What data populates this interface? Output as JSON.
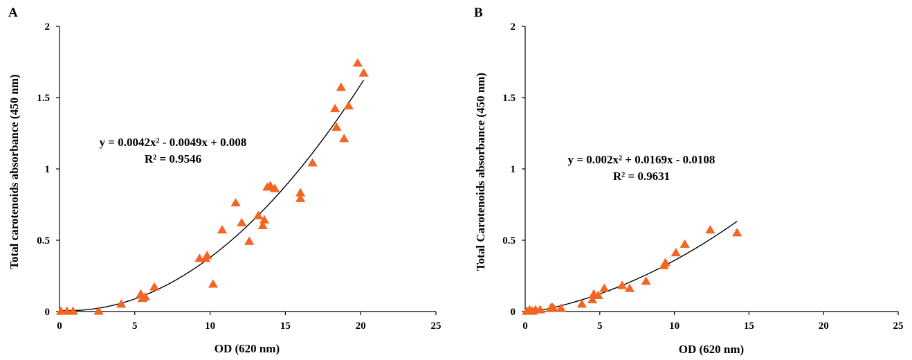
{
  "chart_data": [
    {
      "type": "scatter",
      "panel_label": "A",
      "xlabel": "OD (620 nm)",
      "ylabel": "Total carotenoids absorbance (450 nm)",
      "xlim": [
        0,
        25
      ],
      "ylim": [
        0,
        2
      ],
      "x_ticks": [
        "0",
        "5",
        "10",
        "15",
        "20",
        "25"
      ],
      "y_ticks": [
        "0",
        "0.5",
        "1",
        "1.5",
        "2"
      ],
      "marker_color": "#F26522",
      "equation": "y = 0.0042x² - 0.0049x + 0.008",
      "r_squared": "R² = 0.9546",
      "fit": {
        "a": 0.0042,
        "b": -0.0049,
        "c": 0.008,
        "x_range": [
          0,
          20.2
        ]
      },
      "points": [
        {
          "x": 0.1,
          "y": 0.0
        },
        {
          "x": 0.5,
          "y": 0.0
        },
        {
          "x": 0.9,
          "y": 0.0
        },
        {
          "x": 2.6,
          "y": 0.0
        },
        {
          "x": 4.1,
          "y": 0.05
        },
        {
          "x": 5.4,
          "y": 0.12
        },
        {
          "x": 5.5,
          "y": 0.09
        },
        {
          "x": 5.7,
          "y": 0.1
        },
        {
          "x": 6.3,
          "y": 0.17
        },
        {
          "x": 9.3,
          "y": 0.37
        },
        {
          "x": 9.7,
          "y": 0.37
        },
        {
          "x": 9.8,
          "y": 0.39
        },
        {
          "x": 10.2,
          "y": 0.19
        },
        {
          "x": 10.8,
          "y": 0.57
        },
        {
          "x": 11.7,
          "y": 0.76
        },
        {
          "x": 12.1,
          "y": 0.62
        },
        {
          "x": 12.6,
          "y": 0.49
        },
        {
          "x": 13.2,
          "y": 0.67
        },
        {
          "x": 13.5,
          "y": 0.6
        },
        {
          "x": 13.6,
          "y": 0.64
        },
        {
          "x": 13.8,
          "y": 0.87
        },
        {
          "x": 14.0,
          "y": 0.88
        },
        {
          "x": 14.3,
          "y": 0.86
        },
        {
          "x": 16.0,
          "y": 0.83
        },
        {
          "x": 16.0,
          "y": 0.79
        },
        {
          "x": 16.8,
          "y": 1.04
        },
        {
          "x": 18.3,
          "y": 1.42
        },
        {
          "x": 18.4,
          "y": 1.29
        },
        {
          "x": 18.7,
          "y": 1.57
        },
        {
          "x": 18.9,
          "y": 1.21
        },
        {
          "x": 19.2,
          "y": 1.44
        },
        {
          "x": 19.8,
          "y": 1.74
        },
        {
          "x": 20.2,
          "y": 1.67
        }
      ]
    },
    {
      "type": "scatter",
      "panel_label": "B",
      "xlabel": "OD (620 nm)",
      "ylabel": "Total Carotenoids absorbance (450 nm)",
      "xlim": [
        0,
        25
      ],
      "ylim": [
        0,
        2
      ],
      "x_ticks": [
        "0",
        "5",
        "10",
        "15",
        "20",
        "25"
      ],
      "y_ticks": [
        "0",
        "0.5",
        "1",
        "1.5",
        "2"
      ],
      "marker_color": "#F26522",
      "equation": "y = 0.002x² + 0.0169x - 0.0108",
      "r_squared": "R² = 0.9631",
      "fit": {
        "a": 0.002,
        "b": 0.0169,
        "c": -0.0108,
        "x_range": [
          0,
          14.2
        ]
      },
      "points": [
        {
          "x": 0.1,
          "y": 0.0
        },
        {
          "x": 0.3,
          "y": 0.01
        },
        {
          "x": 0.5,
          "y": 0.0
        },
        {
          "x": 0.7,
          "y": 0.01
        },
        {
          "x": 1.0,
          "y": 0.01
        },
        {
          "x": 1.7,
          "y": 0.02
        },
        {
          "x": 1.8,
          "y": 0.03
        },
        {
          "x": 1.9,
          "y": 0.02
        },
        {
          "x": 2.4,
          "y": 0.02
        },
        {
          "x": 3.8,
          "y": 0.05
        },
        {
          "x": 4.5,
          "y": 0.08
        },
        {
          "x": 4.6,
          "y": 0.12
        },
        {
          "x": 4.9,
          "y": 0.11
        },
        {
          "x": 5.3,
          "y": 0.16
        },
        {
          "x": 6.5,
          "y": 0.18
        },
        {
          "x": 7.0,
          "y": 0.16
        },
        {
          "x": 8.1,
          "y": 0.21
        },
        {
          "x": 9.3,
          "y": 0.32
        },
        {
          "x": 9.4,
          "y": 0.34
        },
        {
          "x": 10.1,
          "y": 0.41
        },
        {
          "x": 10.7,
          "y": 0.47
        },
        {
          "x": 12.4,
          "y": 0.57
        },
        {
          "x": 14.2,
          "y": 0.55
        }
      ]
    }
  ]
}
